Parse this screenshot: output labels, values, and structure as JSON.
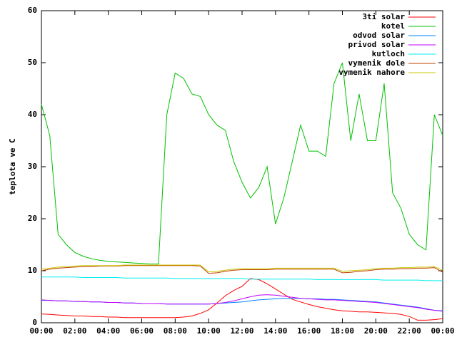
{
  "chart_data": {
    "type": "line",
    "ylabel": "teplota ve C",
    "xlim": [
      0,
      24
    ],
    "ylim": [
      0,
      60
    ],
    "yticks": [
      0,
      10,
      20,
      30,
      40,
      50,
      60
    ],
    "xticks": [
      {
        "value": 0,
        "label": "00:00"
      },
      {
        "value": 2,
        "label": "02:00"
      },
      {
        "value": 4,
        "label": "04:00"
      },
      {
        "value": 6,
        "label": "06:00"
      },
      {
        "value": 8,
        "label": "08:00"
      },
      {
        "value": 10,
        "label": "10:00"
      },
      {
        "value": 12,
        "label": "12:00"
      },
      {
        "value": 14,
        "label": "14:00"
      },
      {
        "value": 16,
        "label": "16:00"
      },
      {
        "value": 18,
        "label": "18:00"
      },
      {
        "value": 20,
        "label": "20:00"
      },
      {
        "value": 22,
        "label": "22:00"
      },
      {
        "value": 24,
        "label": "00:00"
      }
    ],
    "legend": "top-right",
    "x": [
      0,
      0.5,
      1,
      1.5,
      2,
      2.5,
      3,
      3.5,
      4,
      4.5,
      5,
      5.5,
      6,
      6.5,
      7,
      7.5,
      8,
      8.5,
      9,
      9.5,
      10,
      10.5,
      11,
      11.5,
      12,
      12.5,
      13,
      13.5,
      14,
      14.5,
      15,
      15.5,
      16,
      16.5,
      17,
      17.5,
      18,
      18.5,
      19,
      19.5,
      20,
      20.5,
      21,
      21.5,
      22,
      22.5,
      23,
      23.5,
      24
    ],
    "series": [
      {
        "name": "3ti solar",
        "color": "#ff0000",
        "values": [
          1.7,
          1.6,
          1.5,
          1.4,
          1.3,
          1.3,
          1.2,
          1.2,
          1.1,
          1.1,
          1,
          1,
          1,
          1,
          1,
          1,
          1,
          1.1,
          1.3,
          1.8,
          2.5,
          3.8,
          5.2,
          6.2,
          7,
          8.5,
          8.3,
          7.5,
          6.5,
          5.5,
          4.5,
          4,
          3.5,
          3.1,
          2.8,
          2.5,
          2.3,
          2.2,
          2.1,
          2.1,
          2,
          1.9,
          1.8,
          1.6,
          1.2,
          0.5,
          0.5,
          0.6,
          0.8
        ]
      },
      {
        "name": "kotel",
        "color": "#00c000",
        "values": [
          42,
          36,
          17,
          15,
          13.5,
          12.8,
          12.3,
          12,
          11.8,
          11.7,
          11.6,
          11.5,
          11.4,
          11.3,
          11.3,
          40,
          48,
          47,
          44,
          43.5,
          40,
          38,
          37,
          31,
          27,
          24,
          26,
          30,
          19,
          24,
          31,
          38,
          33,
          33,
          32,
          46,
          50,
          35,
          44,
          35,
          35,
          46,
          25,
          22,
          17,
          15,
          14,
          40,
          36
        ]
      },
      {
        "name": "odvod solar",
        "color": "#0080ff",
        "values": [
          4.3,
          4.3,
          4.2,
          4.2,
          4.1,
          4.1,
          4,
          4,
          3.9,
          3.9,
          3.8,
          3.8,
          3.7,
          3.7,
          3.7,
          3.6,
          3.6,
          3.6,
          3.6,
          3.6,
          3.6,
          3.7,
          3.8,
          3.9,
          4,
          4.2,
          4.4,
          4.5,
          4.6,
          4.7,
          4.7,
          4.7,
          4.6,
          4.6,
          4.5,
          4.5,
          4.4,
          4.3,
          4.2,
          4.1,
          4,
          3.8,
          3.6,
          3.4,
          3.2,
          3,
          2.7,
          2.4,
          2.3
        ]
      },
      {
        "name": "privod solar",
        "color": "#c000ff",
        "values": [
          4.4,
          4.3,
          4.2,
          4.2,
          4.1,
          4.1,
          4,
          4,
          3.9,
          3.9,
          3.8,
          3.8,
          3.7,
          3.7,
          3.7,
          3.6,
          3.6,
          3.6,
          3.6,
          3.6,
          3.6,
          3.7,
          3.9,
          4.2,
          4.6,
          5,
          5.3,
          5.4,
          5.3,
          5.1,
          4.9,
          4.7,
          4.6,
          4.5,
          4.4,
          4.4,
          4.3,
          4.2,
          4.1,
          4,
          3.9,
          3.7,
          3.5,
          3.3,
          3.1,
          2.9,
          2.6,
          2.4,
          2.2
        ]
      },
      {
        "name": "kutloch",
        "color": "#00eeee",
        "values": [
          8.8,
          8.8,
          8.8,
          8.8,
          8.8,
          8.7,
          8.7,
          8.7,
          8.7,
          8.7,
          8.6,
          8.6,
          8.6,
          8.6,
          8.6,
          8.6,
          8.5,
          8.5,
          8.5,
          8.5,
          8.5,
          8.5,
          8.5,
          8.5,
          8.5,
          8.4,
          8.4,
          8.4,
          8.4,
          8.4,
          8.4,
          8.4,
          8.4,
          8.3,
          8.3,
          8.3,
          8.3,
          8.3,
          8.3,
          8.3,
          8.3,
          8.2,
          8.2,
          8.2,
          8.2,
          8.2,
          8.1,
          8.1,
          8.1
        ]
      },
      {
        "name": "vymenik dole",
        "color": "#c04000",
        "values": [
          10,
          10.3,
          10.5,
          10.6,
          10.7,
          10.8,
          10.8,
          10.9,
          10.9,
          10.9,
          11,
          11,
          11,
          11,
          11,
          11,
          11,
          11,
          11,
          10.9,
          9.5,
          9.6,
          9.9,
          10.1,
          10.2,
          10.2,
          10.2,
          10.2,
          10.3,
          10.3,
          10.3,
          10.3,
          10.3,
          10.3,
          10.3,
          10.3,
          9.6,
          9.7,
          9.9,
          10,
          10.2,
          10.3,
          10.3,
          10.4,
          10.4,
          10.5,
          10.5,
          10.6,
          9.7
        ]
      },
      {
        "name": "vymenik nahore",
        "color": "#c8c800",
        "values": [
          10.3,
          10.5,
          10.7,
          10.8,
          10.9,
          11,
          11,
          11,
          11,
          11,
          11.1,
          11.1,
          11.1,
          11.1,
          11.1,
          11.1,
          11.1,
          11.1,
          11.1,
          11.1,
          9.8,
          9.9,
          10.1,
          10.3,
          10.4,
          10.4,
          10.4,
          10.4,
          10.5,
          10.5,
          10.5,
          10.5,
          10.5,
          10.5,
          10.5,
          10.5,
          9.9,
          10,
          10.1,
          10.2,
          10.4,
          10.5,
          10.5,
          10.6,
          10.6,
          10.7,
          10.7,
          10.8,
          10.1
        ]
      }
    ]
  }
}
